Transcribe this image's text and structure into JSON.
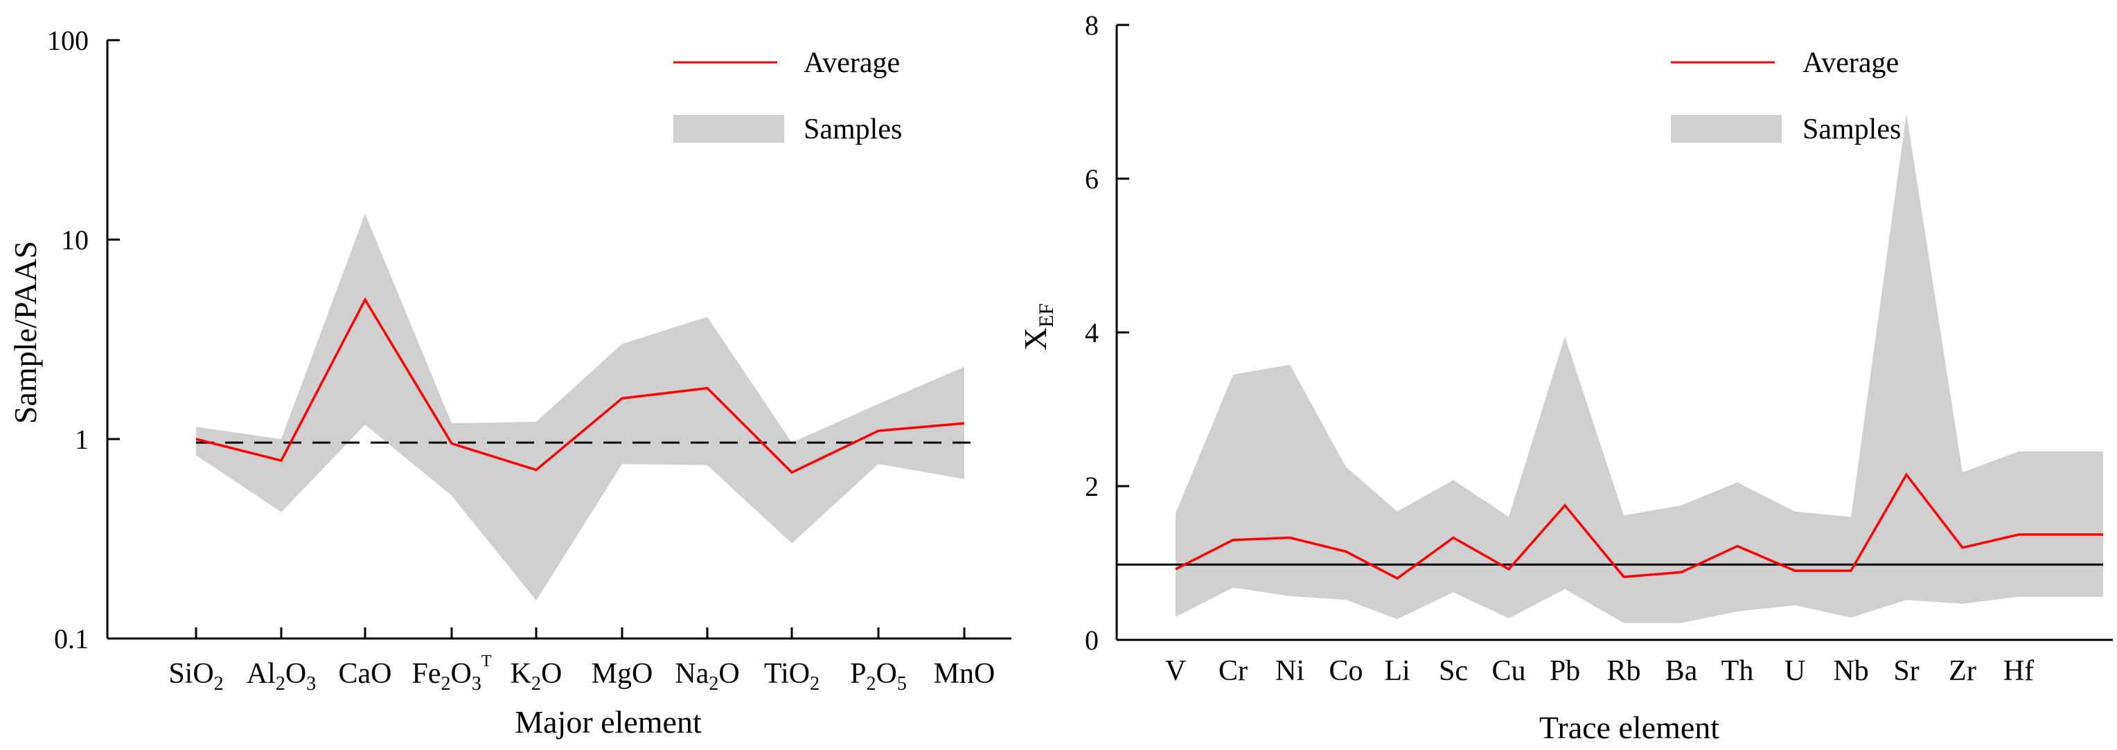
{
  "colors": {
    "average": "#ff0000",
    "samples": "#d0d0d0",
    "axis": "#000000",
    "reference": "#000000"
  },
  "chart_data": [
    {
      "type": "area",
      "yscale": "log",
      "ylim": [
        0.1,
        100
      ],
      "yticks": [
        {
          "value": 0.1,
          "label": "0.1"
        },
        {
          "value": 1,
          "label": "1"
        },
        {
          "value": 10,
          "label": "10"
        },
        {
          "value": 100,
          "label": "100"
        }
      ],
      "categories": [
        {
          "label": "SiO",
          "sub": "2",
          "sup": ""
        },
        {
          "label": "Al",
          "sub": "2",
          "label2": "O",
          "sub2": "3",
          "sup": ""
        },
        {
          "label": "CaO",
          "sub": "",
          "sup": ""
        },
        {
          "label": "Fe",
          "sub": "2",
          "label2": "O",
          "sub2": "3",
          "sup": "T"
        },
        {
          "label": "K",
          "sub": "2",
          "label2": "O",
          "sub2": "",
          "sup": ""
        },
        {
          "label": "MgO",
          "sub": "",
          "sup": ""
        },
        {
          "label": "Na",
          "sub": "2",
          "label2": "O",
          "sub2": "",
          "sup": ""
        },
        {
          "label": "TiO",
          "sub": "2",
          "sup": ""
        },
        {
          "label": "P",
          "sub": "2",
          "label2": "O",
          "sub2": "5",
          "sup": ""
        },
        {
          "label": "MnO",
          "sub": "",
          "sup": ""
        }
      ],
      "series": [
        {
          "name": "Average",
          "kind": "line",
          "values": [
            1.0,
            0.78,
            5.0,
            0.95,
            0.7,
            1.6,
            1.8,
            0.68,
            1.1,
            1.2
          ]
        },
        {
          "name": "Samples",
          "kind": "band",
          "upper": [
            1.15,
            1.0,
            13.5,
            1.2,
            1.22,
            3.0,
            4.1,
            0.96,
            1.5,
            2.3
          ],
          "lower": [
            0.83,
            0.43,
            1.18,
            0.52,
            0.155,
            0.75,
            0.74,
            0.3,
            0.75,
            0.63
          ]
        }
      ],
      "reference_line": {
        "value": 0.96,
        "style": "dashed"
      },
      "xlabel": "Major element",
      "ylabel": "Sample/PAAS",
      "legend_position": "top-right"
    },
    {
      "type": "area",
      "yscale": "linear",
      "ylim": [
        0,
        8
      ],
      "yticks": [
        {
          "value": 0,
          "label": "0"
        },
        {
          "value": 2,
          "label": "2"
        },
        {
          "value": 4,
          "label": "4"
        },
        {
          "value": 6,
          "label": "6"
        },
        {
          "value": 8,
          "label": "8"
        }
      ],
      "categories": [
        {
          "label": "V"
        },
        {
          "label": "Cr"
        },
        {
          "label": "Ni"
        },
        {
          "label": "Co"
        },
        {
          "label": "Li"
        },
        {
          "label": "Sc"
        },
        {
          "label": "Cu"
        },
        {
          "label": "Pb"
        },
        {
          "label": "Rb"
        },
        {
          "label": "Ba"
        },
        {
          "label": "Th"
        },
        {
          "label": "U"
        },
        {
          "label": "Nb"
        },
        {
          "label": "Sr"
        },
        {
          "label": "Zr"
        },
        {
          "label": "Hf"
        }
      ],
      "extra_x": 2.45,
      "series": [
        {
          "name": "Average",
          "kind": "line",
          "values": [
            0.92,
            1.3,
            1.33,
            1.15,
            0.8,
            1.33,
            0.92,
            1.75,
            0.82,
            0.88,
            1.22,
            0.9,
            0.9,
            2.15,
            1.2,
            1.37
          ],
          "last": 1.37
        },
        {
          "name": "Samples",
          "kind": "band",
          "upper": [
            1.65,
            3.45,
            3.58,
            2.25,
            1.67,
            2.08,
            1.6,
            3.95,
            1.62,
            1.75,
            2.05,
            1.67,
            1.6,
            6.85,
            2.18,
            2.45
          ],
          "lower": [
            0.3,
            0.68,
            0.57,
            0.52,
            0.27,
            0.62,
            0.28,
            0.66,
            0.22,
            0.22,
            0.37,
            0.45,
            0.29,
            0.52,
            0.47,
            0.56
          ]
        }
      ],
      "reference_line": {
        "value": 0.98,
        "style": "solid"
      },
      "xlabel": "Trace element",
      "ylabel": "X",
      "ylabel_sub": "EF",
      "legend_position": "top-right"
    }
  ]
}
